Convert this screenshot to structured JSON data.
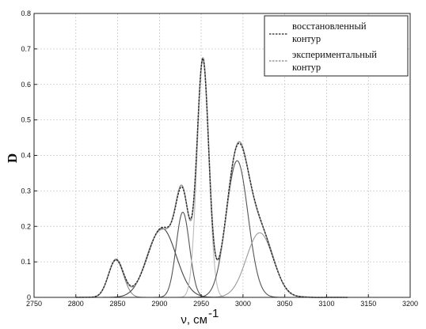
{
  "chart_data": {
    "type": "line",
    "xlabel": "ν, см",
    "xlabel_superscript": "-1",
    "ylabel": "D",
    "xlim": [
      2750,
      3200
    ],
    "ylim": [
      0,
      0.8
    ],
    "x_ticks": [
      2750,
      2800,
      2850,
      2900,
      2950,
      3000,
      3050,
      3100,
      3150,
      3200
    ],
    "y_ticks": [
      0,
      0.1,
      0.2,
      0.3,
      0.4,
      0.5,
      0.6,
      0.7,
      0.8
    ],
    "grid": true,
    "legend_position": "top-right",
    "legend": {
      "reconstructed": {
        "line1": "восстановленный",
        "line2": "контур",
        "color": "#333333"
      },
      "experimental": {
        "line1": "экспериментальный",
        "line2": "контур",
        "color": "#9a9a9a"
      }
    },
    "components": [
      {
        "center": 2848,
        "amplitude": 0.105,
        "width": 9,
        "color": "#888888"
      },
      {
        "center": 2903,
        "amplitude": 0.195,
        "width": 17,
        "color": "#444444"
      },
      {
        "center": 2928,
        "amplitude": 0.24,
        "width": 8,
        "color": "#555555"
      },
      {
        "center": 2952,
        "amplitude": 0.665,
        "width": 7,
        "color": "#bbbbbb"
      },
      {
        "center": 2993,
        "amplitude": 0.385,
        "width": 13,
        "color": "#555555"
      },
      {
        "center": 3020,
        "amplitude": 0.182,
        "width": 16,
        "color": "#9a9a9a"
      }
    ],
    "curve_range": [
      2800,
      3125
    ]
  }
}
